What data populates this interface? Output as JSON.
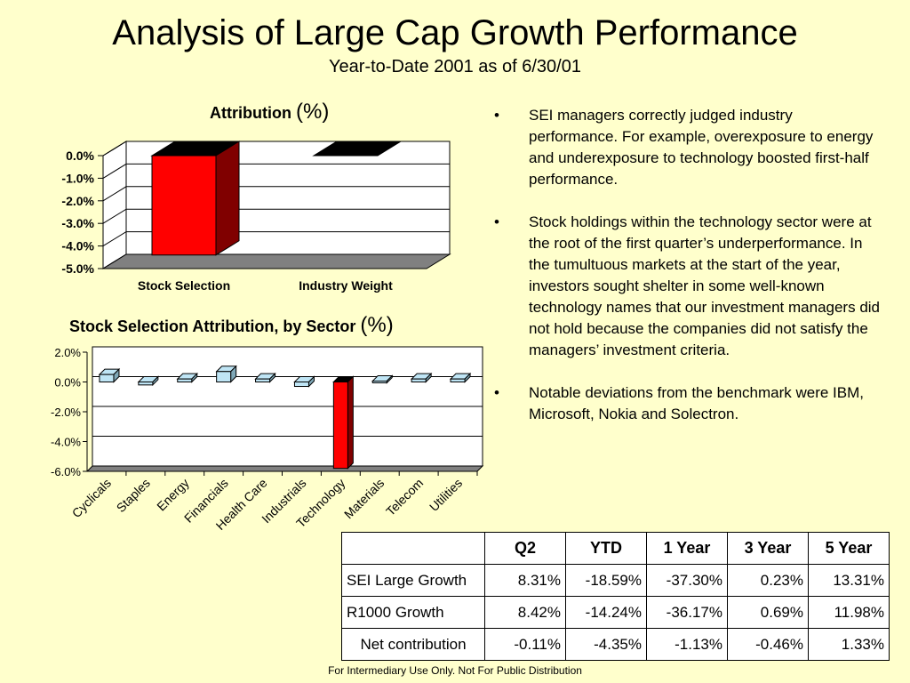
{
  "title": "Analysis of Large Cap Growth Performance",
  "subtitle": "Year-to-Date 2001 as of 6/30/01",
  "bullets": [
    {
      "marker": "•",
      "text": "SEI managers correctly judged industry performance. For example, overexposure to energy and underexposure to technology boosted first-half performance."
    },
    {
      "marker": "•",
      "text": "Stock holdings within the technology sector were at the root of the first quarter’s underperformance.  In the tumultuous markets at the start of the year, investors sought shelter in some well-known technology names that our investment managers did not hold because the companies did not satisfy the managers’ investment criteria."
    },
    {
      "marker": "•",
      "text": "Notable deviations from the benchmark were IBM, Microsoft, Nokia and Solectron."
    }
  ],
  "table": {
    "headers": [
      "",
      "Q2",
      "YTD",
      "1 Year",
      "3 Year",
      "5 Year"
    ],
    "rows": [
      {
        "label": "SEI Large Growth",
        "values": [
          "8.31%",
          "-18.59%",
          "-37.30%",
          "0.23%",
          "13.31%"
        ]
      },
      {
        "label": "R1000 Growth",
        "values": [
          "8.42%",
          "-14.24%",
          "-36.17%",
          "0.69%",
          "11.98%"
        ]
      },
      {
        "label": "Net contribution",
        "values": [
          "-0.11%",
          "-4.35%",
          "-1.13%",
          "-0.46%",
          "1.33%"
        ]
      }
    ]
  },
  "footer": "For Intermediary Use Only.  Not For Public Distribution",
  "colors": {
    "background": "#ffffcc",
    "red_bar": "#ff0000",
    "light_blue_bar": "#bfe5f5"
  },
  "chart_data": [
    {
      "type": "bar",
      "title": "Attribution",
      "title_unit": "(%)",
      "categories": [
        "Stock Selection",
        "Industry Weight"
      ],
      "values": [
        -4.4,
        0.0
      ],
      "ylim": [
        -5.0,
        0.0
      ],
      "yticks": [
        "0.0%",
        "-1.0%",
        "-2.0%",
        "-3.0%",
        "-4.0%",
        "-5.0%"
      ],
      "grid": true,
      "style": "3d"
    },
    {
      "type": "bar",
      "title": "Stock Selection Attribution, by Sector",
      "title_unit": "(%)",
      "categories": [
        "Cyclicals",
        "Staples",
        "Energy",
        "Financials",
        "Health Care",
        "Industrials",
        "Technology",
        "Materials",
        "Telecom",
        "Utilities"
      ],
      "values": [
        0.5,
        -0.2,
        0.2,
        0.7,
        0.2,
        -0.3,
        -5.8,
        0.05,
        0.2,
        0.2
      ],
      "ylim": [
        -6.0,
        2.0
      ],
      "yticks": [
        "2.0%",
        "0.0%",
        "-2.0%",
        "-4.0%",
        "-6.0%"
      ],
      "grid": true,
      "style": "3d"
    }
  ]
}
